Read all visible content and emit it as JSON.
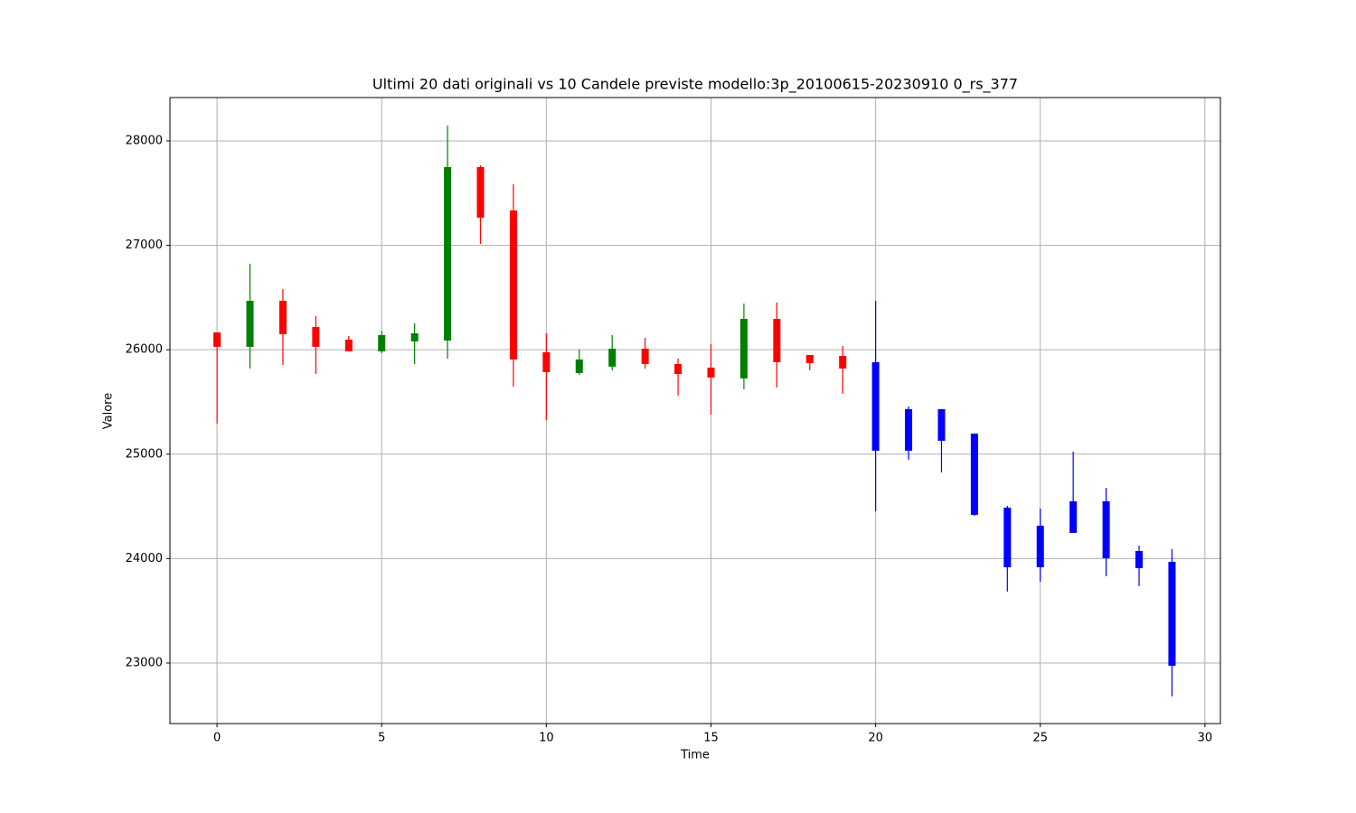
{
  "chart_data": {
    "type": "candlestick",
    "title": "Ultimi 20 dati originali vs 10 Candele previste modello:3p_20100615-20230910 0_rs_377",
    "x_label": "Time",
    "y_label": "Valore",
    "x": [
      0,
      1,
      2,
      3,
      4,
      5,
      6,
      7,
      8,
      9,
      10,
      11,
      12,
      13,
      14,
      15,
      16,
      17,
      18,
      19,
      20,
      21,
      22,
      23,
      24,
      25,
      26,
      27,
      28,
      29
    ],
    "open": [
      26166,
      26028,
      26469,
      26218,
      26097,
      25985,
      26080,
      26088,
      27749,
      27334,
      25976,
      25777,
      25838,
      26010,
      25863,
      25829,
      25725,
      26296,
      25950,
      25941,
      25881,
      25033,
      25431,
      25197,
      24488,
      23917,
      24246,
      24549,
      24073,
      23969
    ],
    "high": [
      26166,
      26824,
      26581,
      26322,
      26132,
      26183,
      26253,
      28147,
      27766,
      27585,
      26157,
      26002,
      26140,
      26114,
      25915,
      26054,
      26443,
      26452,
      25950,
      26036,
      26469,
      25457,
      25431,
      25197,
      24505,
      24479,
      25024,
      24678,
      24125,
      24090
    ],
    "low": [
      25293,
      25820,
      25855,
      25768,
      25985,
      25967,
      25863,
      25915,
      27014,
      25647,
      25327,
      25760,
      25803,
      25820,
      25561,
      25379,
      25621,
      25639,
      25803,
      25578,
      24454,
      24947,
      24825,
      24410,
      23684,
      23779,
      24246,
      23831,
      23736,
      22680
    ],
    "close": [
      26028,
      26469,
      26149,
      26028,
      25985,
      26140,
      26157,
      27749,
      27265,
      25907,
      25786,
      25907,
      26010,
      25863,
      25768,
      25734,
      26296,
      25881,
      25872,
      25820,
      25033,
      25431,
      25128,
      24419,
      23917,
      24315,
      24549,
      24004,
      23909,
      22974
    ],
    "colors": [
      "red",
      "green",
      "red",
      "red",
      "red",
      "green",
      "green",
      "green",
      "red",
      "red",
      "red",
      "green",
      "green",
      "red",
      "red",
      "red",
      "green",
      "red",
      "red",
      "red",
      "blue",
      "blue",
      "blue",
      "blue",
      "blue",
      "blue",
      "blue",
      "blue",
      "blue",
      "blue"
    ],
    "xlim": [
      -1.43,
      30.47
    ],
    "ylim": [
      22420,
      28415
    ],
    "xticks": [
      0,
      5,
      10,
      15,
      20,
      25,
      30
    ],
    "yticks": [
      23000,
      24000,
      25000,
      26000,
      27000,
      28000
    ],
    "grid": true
  }
}
